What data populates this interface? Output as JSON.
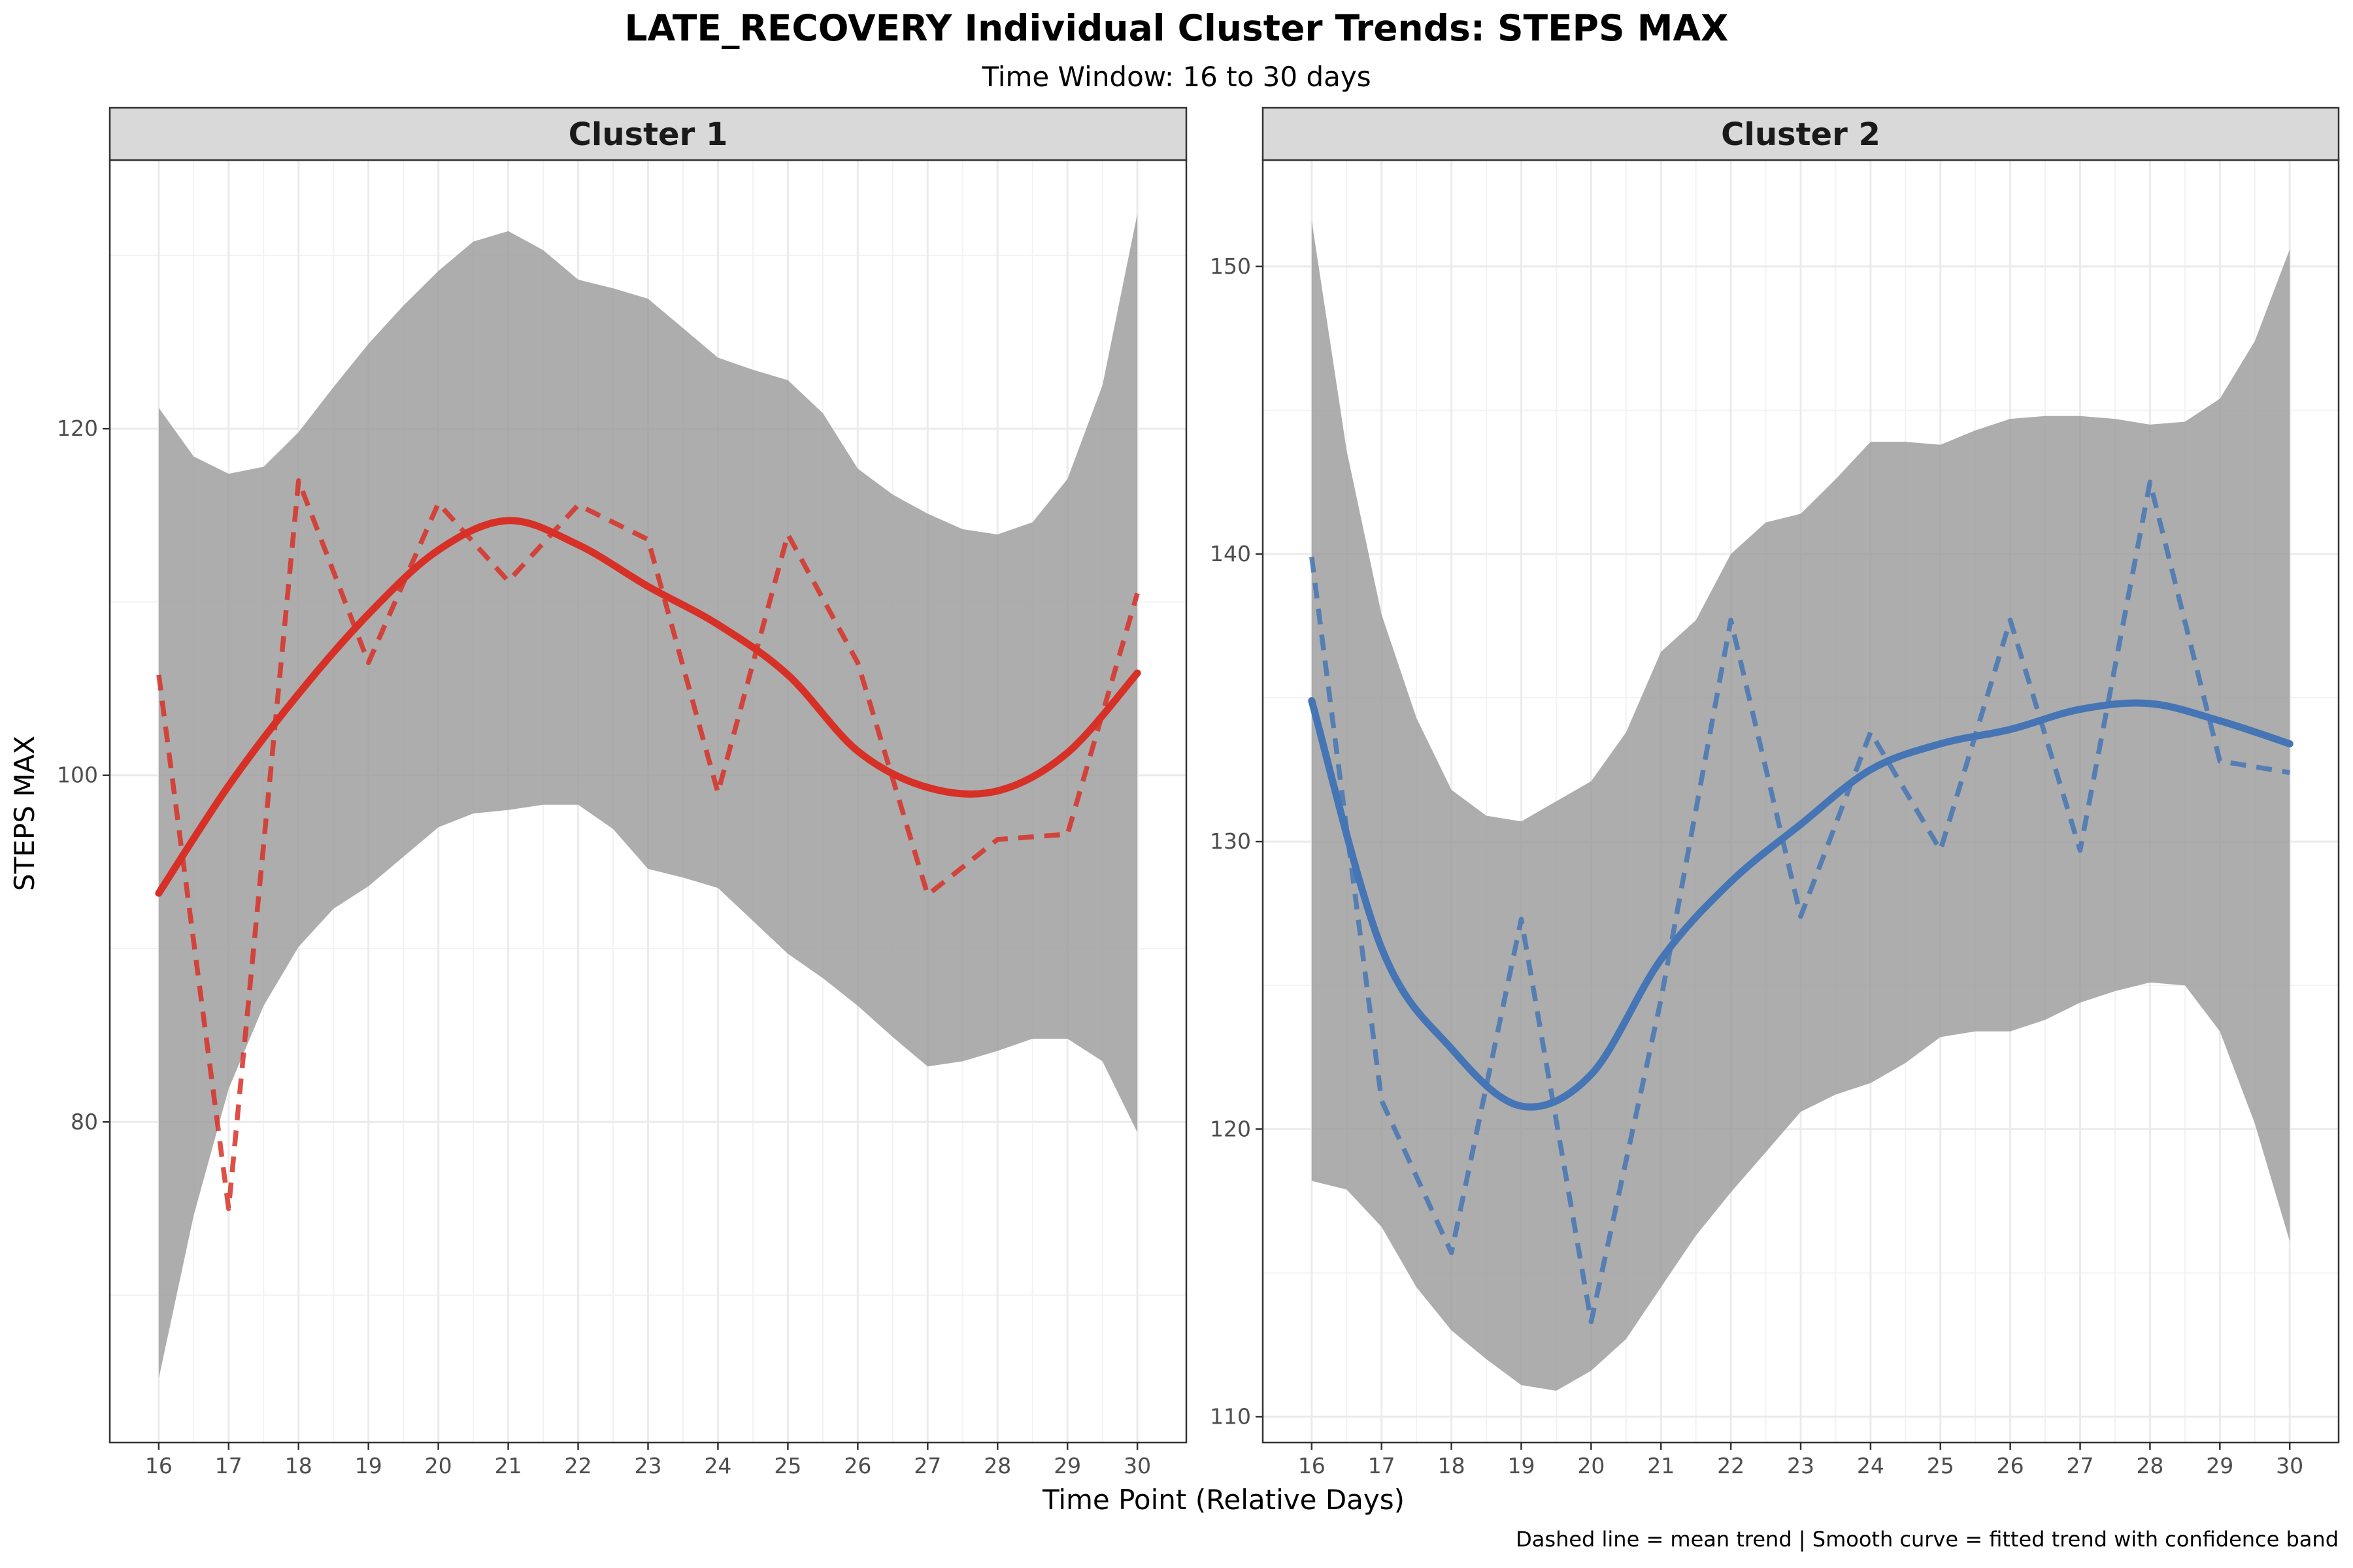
{
  "title": "LATE_RECOVERY Individual Cluster Trends: STEPS MAX",
  "subtitle": "Time Window: 16 to 30 days",
  "caption": "Dashed line = mean trend | Smooth curve = fitted trend with confidence band",
  "chart_data": {
    "type": "line",
    "xlabel": "Time Point (Relative Days)",
    "ylabel": "STEPS MAX",
    "grid": true,
    "legend": "none",
    "x": [
      16,
      17,
      18,
      19,
      20,
      21,
      22,
      23,
      24,
      25,
      26,
      27,
      28,
      29,
      30
    ],
    "panels": [
      {
        "name": "Cluster 1",
        "color": "#d73027",
        "xlim": [
          15.3,
          30.7
        ],
        "ylim": [
          61.5,
          135.5
        ],
        "y_ticks": [
          80,
          100,
          120
        ],
        "mean": [
          105.8,
          75,
          117,
          106.5,
          115.7,
          111.2,
          115.6,
          113.6,
          99,
          113.9,
          106.5,
          93.1,
          96.3,
          96.6,
          110.5
        ],
        "smooth": [
          93.2,
          99.4,
          104.7,
          109.3,
          113.0,
          114.7,
          113.3,
          110.9,
          108.7,
          105.8,
          101.4,
          99.3,
          99.1,
          101.3,
          105.9
        ],
        "band_x": [
          16,
          16.5,
          17,
          17.5,
          18,
          18.5,
          19,
          19.5,
          20,
          20.5,
          21,
          21.5,
          22,
          22.5,
          23,
          23.5,
          24,
          24.5,
          25,
          25.5,
          26,
          26.5,
          27,
          27.5,
          28,
          28.5,
          29,
          29.5,
          30
        ],
        "band_upper": [
          121.2,
          118.4,
          117.4,
          117.8,
          119.8,
          122.4,
          124.9,
          127.1,
          129.1,
          130.8,
          131.4,
          130.3,
          128.6,
          128.1,
          127.5,
          125.8,
          124.1,
          123.4,
          122.8,
          120.9,
          117.7,
          116.2,
          115.1,
          114.2,
          113.9,
          114.6,
          117.1,
          122.5,
          132.4
        ],
        "band_lower": [
          65.2,
          74.6,
          81.9,
          86.7,
          90.1,
          92.3,
          93.6,
          95.3,
          97.0,
          97.8,
          98.0,
          98.3,
          98.3,
          96.9,
          94.6,
          94.1,
          93.5,
          91.6,
          89.7,
          88.3,
          86.7,
          84.9,
          83.2,
          83.5,
          84.1,
          84.8,
          84.8,
          83.5,
          79.4
        ]
      },
      {
        "name": "Cluster 2",
        "color": "#4575b4",
        "xlim": [
          15.3,
          30.7
        ],
        "ylim": [
          109.1,
          153.7
        ],
        "y_ticks": [
          110,
          120,
          130,
          140,
          150
        ],
        "mean": [
          139.9,
          121,
          115.7,
          127.3,
          113.3,
          124.5,
          137.7,
          127.4,
          133.8,
          129.7,
          137.7,
          129.7,
          142.5,
          132.8,
          132.4
        ],
        "smooth": [
          134.9,
          126.3,
          122.8,
          120.8,
          121.9,
          125.9,
          128.6,
          130.6,
          132.5,
          133.4,
          133.9,
          134.6,
          134.8,
          134.2,
          133.4
        ],
        "band_x": [
          16,
          16.5,
          17,
          17.5,
          18,
          18.5,
          19,
          19.5,
          20,
          20.5,
          21,
          21.5,
          22,
          22.5,
          23,
          23.5,
          24,
          24.5,
          25,
          25.5,
          26,
          26.5,
          27,
          27.5,
          28,
          28.5,
          29,
          29.5,
          30
        ],
        "band_upper": [
          151.6,
          143.6,
          137.9,
          134.3,
          131.8,
          130.9,
          130.7,
          131.4,
          132.1,
          133.8,
          136.6,
          137.7,
          140.0,
          141.1,
          141.4,
          142.6,
          143.9,
          143.9,
          143.8,
          144.3,
          144.7,
          144.8,
          144.8,
          144.7,
          144.5,
          144.6,
          145.4,
          147.4,
          150.6
        ],
        "band_lower": [
          118.2,
          117.9,
          116.6,
          114.5,
          113.0,
          112.0,
          111.1,
          110.9,
          111.6,
          112.7,
          114.5,
          116.3,
          117.8,
          119.2,
          120.6,
          121.2,
          121.6,
          122.3,
          123.2,
          123.4,
          123.4,
          123.8,
          124.4,
          124.8,
          125.1,
          125.0,
          123.4,
          120.2,
          116.1
        ]
      }
    ]
  }
}
